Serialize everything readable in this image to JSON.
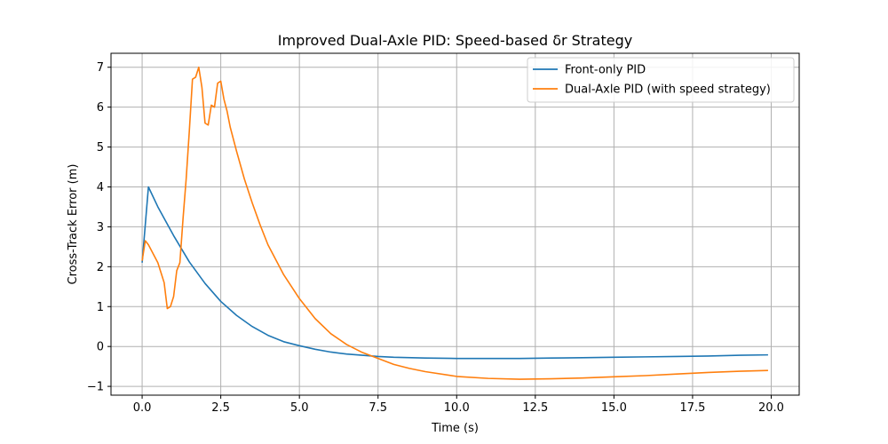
{
  "chart_data": {
    "type": "line",
    "title": "Improved Dual-Axle PID: Speed-based δr Strategy",
    "xlabel": "Time (s)",
    "ylabel": "Cross-Track Error (m)",
    "xlim": [
      -0.99,
      20.89
    ],
    "ylim": [
      -1.22,
      7.35
    ],
    "xticks": [
      0.0,
      2.5,
      5.0,
      7.5,
      10.0,
      12.5,
      15.0,
      17.5,
      20.0
    ],
    "xtick_labels": [
      "0.0",
      "2.5",
      "5.0",
      "7.5",
      "10.0",
      "12.5",
      "15.0",
      "17.5",
      "20.0"
    ],
    "yticks": [
      -1,
      0,
      1,
      2,
      3,
      4,
      5,
      6,
      7
    ],
    "ytick_labels": [
      "−1",
      "0",
      "1",
      "2",
      "3",
      "4",
      "5",
      "6",
      "7"
    ],
    "grid": true,
    "legend_position": "top-right",
    "series": [
      {
        "name": "Front-only PID",
        "color": "#1f77b4",
        "x": [
          0.0,
          0.2,
          0.5,
          1.0,
          1.5,
          2.0,
          2.5,
          3.0,
          3.5,
          4.0,
          4.5,
          5.0,
          5.5,
          6.0,
          6.5,
          7.0,
          7.5,
          8.0,
          9.0,
          10.0,
          11.0,
          12.0,
          13.0,
          14.0,
          15.0,
          16.0,
          17.0,
          18.0,
          19.0,
          19.9
        ],
        "y": [
          2.1,
          4.0,
          3.5,
          2.78,
          2.12,
          1.58,
          1.13,
          0.78,
          0.5,
          0.28,
          0.12,
          0.02,
          -0.07,
          -0.14,
          -0.19,
          -0.22,
          -0.25,
          -0.27,
          -0.29,
          -0.3,
          -0.3,
          -0.3,
          -0.29,
          -0.28,
          -0.27,
          -0.26,
          -0.25,
          -0.24,
          -0.22,
          -0.21
        ]
      },
      {
        "name": "Dual-Axle PID (with speed strategy)",
        "color": "#ff7f0e",
        "x": [
          0.0,
          0.1,
          0.2,
          0.3,
          0.4,
          0.5,
          0.6,
          0.7,
          0.8,
          0.9,
          1.0,
          1.1,
          1.2,
          1.3,
          1.4,
          1.5,
          1.6,
          1.7,
          1.8,
          1.9,
          2.0,
          2.1,
          2.2,
          2.3,
          2.4,
          2.5,
          2.6,
          2.7,
          2.8,
          3.0,
          3.25,
          3.5,
          3.75,
          4.0,
          4.5,
          5.0,
          5.5,
          6.0,
          6.5,
          7.0,
          7.5,
          8.0,
          8.5,
          9.0,
          10.0,
          11.0,
          12.0,
          13.0,
          14.0,
          15.0,
          16.0,
          17.0,
          18.0,
          19.0,
          19.9
        ],
        "y": [
          2.15,
          2.65,
          2.55,
          2.4,
          2.25,
          2.1,
          1.85,
          1.6,
          0.95,
          1.0,
          1.25,
          1.9,
          2.1,
          3.2,
          4.2,
          5.4,
          6.7,
          6.75,
          7.0,
          6.5,
          5.6,
          5.55,
          6.05,
          6.0,
          6.6,
          6.65,
          6.2,
          5.9,
          5.5,
          4.9,
          4.2,
          3.6,
          3.05,
          2.55,
          1.8,
          1.2,
          0.7,
          0.32,
          0.05,
          -0.15,
          -0.3,
          -0.45,
          -0.55,
          -0.63,
          -0.75,
          -0.8,
          -0.82,
          -0.81,
          -0.79,
          -0.76,
          -0.73,
          -0.69,
          -0.65,
          -0.62,
          -0.6
        ]
      }
    ]
  }
}
